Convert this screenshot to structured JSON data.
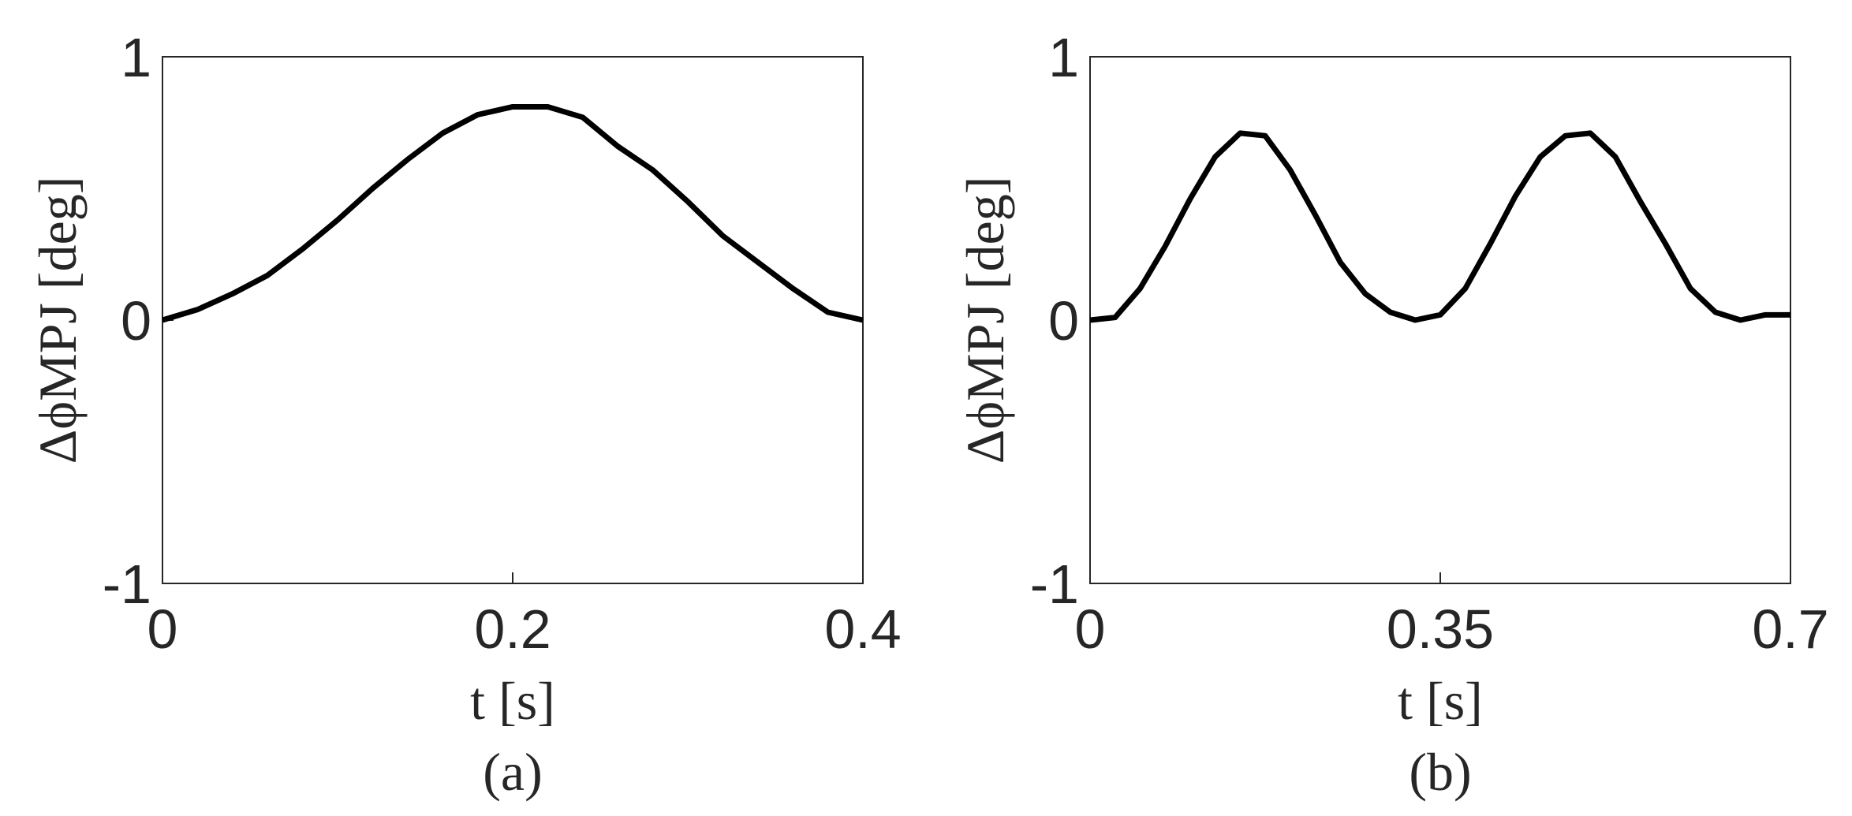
{
  "chart_data": [
    {
      "type": "line",
      "caption": "(a)",
      "xlabel": "t [s]",
      "ylabel": "ΔϕMPJ [deg]",
      "x": [
        0,
        0.02,
        0.04,
        0.06,
        0.08,
        0.1,
        0.12,
        0.14,
        0.16,
        0.18,
        0.2,
        0.22,
        0.24,
        0.26,
        0.28,
        0.3,
        0.32,
        0.34,
        0.36,
        0.38,
        0.4
      ],
      "series": [
        {
          "color": "#000000",
          "values": [
            0,
            0.04,
            0.1,
            0.17,
            0.27,
            0.38,
            0.5,
            0.61,
            0.71,
            0.78,
            0.81,
            0.81,
            0.77,
            0.66,
            0.57,
            0.45,
            0.32,
            0.22,
            0.12,
            0.03,
            0
          ]
        }
      ],
      "xlim": [
        0,
        0.4
      ],
      "ylim": [
        -1,
        1
      ],
      "xticks": [
        0,
        0.2,
        0.4
      ],
      "yticks": [
        -1,
        0,
        1
      ],
      "grid": false
    },
    {
      "type": "line",
      "caption": "(b)",
      "xlabel": "t [s]",
      "ylabel": "ΔϕMPJ [deg]",
      "x": [
        0,
        0.025,
        0.05,
        0.075,
        0.1,
        0.125,
        0.15,
        0.175,
        0.2,
        0.225,
        0.25,
        0.275,
        0.3,
        0.325,
        0.35,
        0.375,
        0.4,
        0.425,
        0.45,
        0.475,
        0.5,
        0.525,
        0.55,
        0.575,
        0.6,
        0.625,
        0.65,
        0.675,
        0.7
      ],
      "series": [
        {
          "color": "#000000",
          "values": [
            0,
            0.01,
            0.12,
            0.28,
            0.46,
            0.62,
            0.71,
            0.7,
            0.57,
            0.4,
            0.22,
            0.1,
            0.03,
            0,
            0.02,
            0.12,
            0.29,
            0.47,
            0.62,
            0.7,
            0.71,
            0.62,
            0.45,
            0.29,
            0.12,
            0.03,
            0,
            0.02,
            0.02
          ]
        }
      ],
      "xlim": [
        0,
        0.7
      ],
      "ylim": [
        -1,
        1
      ],
      "xticks": [
        0,
        0.35,
        0.7
      ],
      "yticks": [
        -1,
        0,
        1
      ],
      "grid": false
    }
  ]
}
